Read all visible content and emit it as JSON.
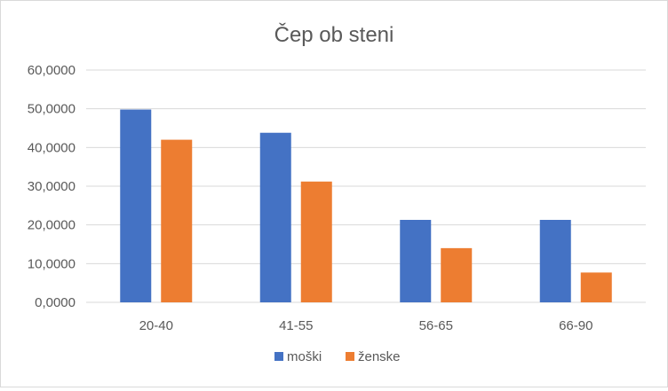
{
  "chart_data": {
    "type": "bar",
    "title": "Čep ob steni",
    "xlabel": "",
    "ylabel": "",
    "categories": [
      "20-40",
      "41-55",
      "56-65",
      "66-90"
    ],
    "series": [
      {
        "name": "moški",
        "values": [
          49.8,
          43.8,
          21.3,
          21.3
        ],
        "color": "#4472c4"
      },
      {
        "name": "ženske",
        "values": [
          42.0,
          31.2,
          14.0,
          7.7
        ],
        "color": "#ed7d31"
      }
    ],
    "ylim": [
      0,
      60
    ],
    "yticks": [
      0,
      10,
      20,
      30,
      40,
      50,
      60
    ],
    "ytick_labels": [
      "0,0000",
      "10,0000",
      "20,0000",
      "30,0000",
      "40,0000",
      "50,0000",
      "60,0000"
    ],
    "grid": true,
    "legend": "bottom"
  }
}
